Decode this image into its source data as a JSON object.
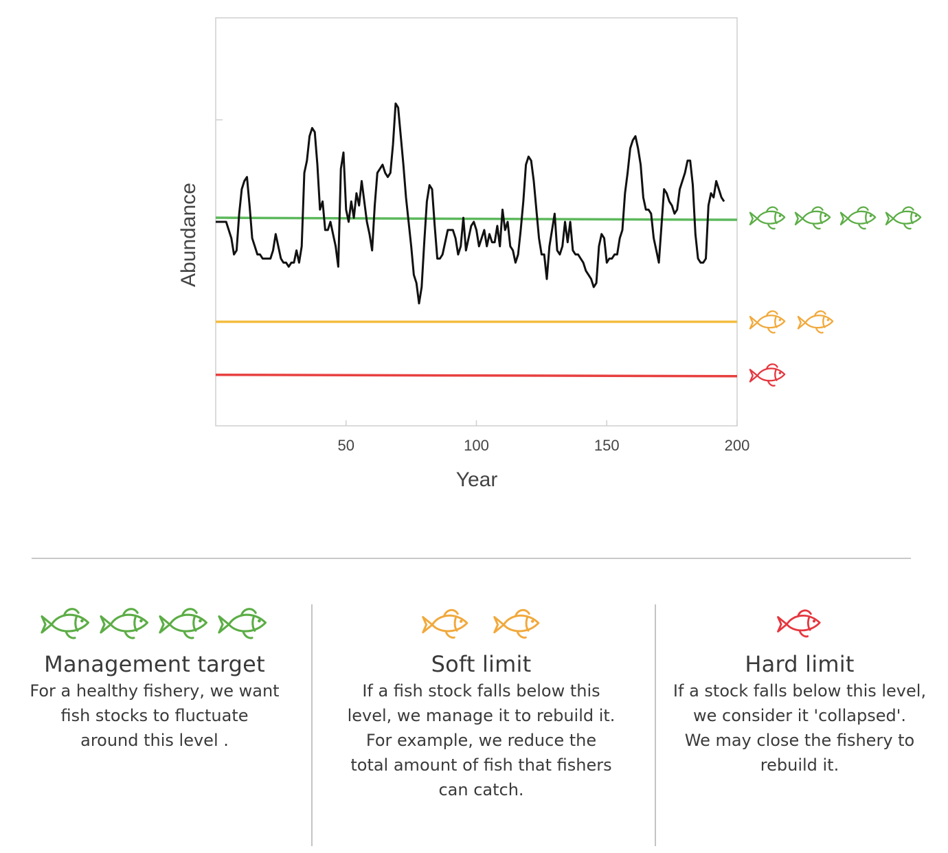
{
  "chart_data": {
    "type": "line",
    "xlabel": "Year",
    "ylabel": "Abundance",
    "xlim": [
      0,
      200
    ],
    "ylim": [
      0,
      100
    ],
    "xticks": [
      "50",
      "100",
      "150",
      "200"
    ],
    "xtick_values": [
      50,
      100,
      150,
      200
    ],
    "yticks": [
      75
    ],
    "grid": false,
    "series": [
      {
        "values": [
          [
            0,
            50
          ],
          [
            4,
            50
          ],
          [
            6,
            46
          ],
          [
            7,
            42
          ],
          [
            8,
            43
          ],
          [
            9,
            52
          ],
          [
            10,
            58
          ],
          [
            11,
            60
          ],
          [
            12,
            61
          ],
          [
            13,
            54
          ],
          [
            14,
            46
          ],
          [
            15,
            44
          ],
          [
            16,
            42
          ],
          [
            17,
            42
          ],
          [
            18,
            41
          ],
          [
            19,
            41
          ],
          [
            20,
            41
          ],
          [
            21,
            41
          ],
          [
            22,
            43
          ],
          [
            23,
            47
          ],
          [
            24,
            44
          ],
          [
            25,
            41
          ],
          [
            26,
            40
          ],
          [
            27,
            40
          ],
          [
            28,
            39
          ],
          [
            29,
            40
          ],
          [
            30,
            40
          ],
          [
            31,
            43
          ],
          [
            32,
            40
          ],
          [
            33,
            44
          ],
          [
            34,
            62
          ],
          [
            35,
            65
          ],
          [
            36,
            71
          ],
          [
            37,
            73
          ],
          [
            38,
            72
          ],
          [
            39,
            64
          ],
          [
            40,
            53
          ],
          [
            41,
            55
          ],
          [
            42,
            48
          ],
          [
            43,
            48
          ],
          [
            44,
            50
          ],
          [
            45,
            47
          ],
          [
            46,
            44
          ],
          [
            47,
            39
          ],
          [
            48,
            63
          ],
          [
            49,
            67
          ],
          [
            50,
            53
          ],
          [
            51,
            50
          ],
          [
            52,
            55
          ],
          [
            53,
            51
          ],
          [
            54,
            57
          ],
          [
            55,
            54
          ],
          [
            56,
            60
          ],
          [
            57,
            55
          ],
          [
            58,
            50
          ],
          [
            59,
            47
          ],
          [
            60,
            43
          ],
          [
            61,
            54
          ],
          [
            62,
            62
          ],
          [
            63,
            63
          ],
          [
            64,
            64
          ],
          [
            65,
            62
          ],
          [
            66,
            61
          ],
          [
            67,
            62
          ],
          [
            68,
            69
          ],
          [
            69,
            79
          ],
          [
            70,
            78
          ],
          [
            71,
            71
          ],
          [
            72,
            64
          ],
          [
            73,
            56
          ],
          [
            74,
            50
          ],
          [
            75,
            44
          ],
          [
            76,
            37
          ],
          [
            77,
            35
          ],
          [
            78,
            30
          ],
          [
            79,
            34
          ],
          [
            80,
            45
          ],
          [
            81,
            55
          ],
          [
            82,
            59
          ],
          [
            83,
            58
          ],
          [
            84,
            49
          ],
          [
            85,
            41
          ],
          [
            86,
            41
          ],
          [
            87,
            42
          ],
          [
            88,
            45
          ],
          [
            89,
            48
          ],
          [
            90,
            48
          ],
          [
            91,
            48
          ],
          [
            92,
            46
          ],
          [
            93,
            42
          ],
          [
            94,
            44
          ],
          [
            95,
            51
          ],
          [
            96,
            43
          ],
          [
            97,
            46
          ],
          [
            98,
            49
          ],
          [
            99,
            50
          ],
          [
            100,
            48
          ],
          [
            101,
            44
          ],
          [
            102,
            46
          ],
          [
            103,
            48
          ],
          [
            104,
            44
          ],
          [
            105,
            47
          ],
          [
            106,
            45
          ],
          [
            107,
            45
          ],
          [
            108,
            49
          ],
          [
            109,
            44
          ],
          [
            110,
            53
          ],
          [
            111,
            48
          ],
          [
            112,
            50
          ],
          [
            113,
            44
          ],
          [
            114,
            43
          ],
          [
            115,
            40
          ],
          [
            116,
            42
          ],
          [
            117,
            48
          ],
          [
            118,
            55
          ],
          [
            119,
            64
          ],
          [
            120,
            66
          ],
          [
            121,
            65
          ],
          [
            122,
            60
          ],
          [
            123,
            53
          ],
          [
            124,
            46
          ],
          [
            125,
            42
          ],
          [
            126,
            42
          ],
          [
            127,
            36
          ],
          [
            128,
            44
          ],
          [
            129,
            48
          ],
          [
            130,
            52
          ],
          [
            131,
            43
          ],
          [
            132,
            42
          ],
          [
            133,
            44
          ],
          [
            134,
            50
          ],
          [
            135,
            45
          ],
          [
            136,
            50
          ],
          [
            137,
            43
          ],
          [
            138,
            42
          ],
          [
            139,
            42
          ],
          [
            140,
            41
          ],
          [
            141,
            40
          ],
          [
            142,
            38
          ],
          [
            143,
            37
          ],
          [
            144,
            36
          ],
          [
            145,
            34
          ],
          [
            146,
            35
          ],
          [
            147,
            44
          ],
          [
            148,
            47
          ],
          [
            149,
            46
          ],
          [
            150,
            40
          ],
          [
            151,
            41
          ],
          [
            152,
            41
          ],
          [
            153,
            42
          ],
          [
            154,
            42
          ],
          [
            155,
            46
          ],
          [
            156,
            48
          ],
          [
            157,
            57
          ],
          [
            158,
            62
          ],
          [
            159,
            68
          ],
          [
            160,
            70
          ],
          [
            161,
            71
          ],
          [
            162,
            68
          ],
          [
            163,
            64
          ],
          [
            164,
            56
          ],
          [
            165,
            53
          ],
          [
            166,
            53
          ],
          [
            167,
            52
          ],
          [
            168,
            46
          ],
          [
            169,
            43
          ],
          [
            170,
            40
          ],
          [
            171,
            49
          ],
          [
            172,
            58
          ],
          [
            173,
            57
          ],
          [
            174,
            55
          ],
          [
            175,
            54
          ],
          [
            176,
            52
          ],
          [
            177,
            53
          ],
          [
            178,
            58
          ],
          [
            179,
            60
          ],
          [
            180,
            62
          ],
          [
            181,
            65
          ],
          [
            182,
            65
          ],
          [
            183,
            59
          ],
          [
            184,
            47
          ],
          [
            185,
            41
          ],
          [
            186,
            40
          ],
          [
            187,
            40
          ],
          [
            188,
            41
          ],
          [
            189,
            54
          ],
          [
            190,
            57
          ],
          [
            191,
            56
          ],
          [
            192,
            60
          ],
          [
            193,
            58
          ],
          [
            194,
            56
          ],
          [
            195,
            55
          ]
        ],
        "color": "#111111"
      }
    ],
    "reference_lines": [
      {
        "label": "Management target",
        "y": 51,
        "color": "#5cb85c",
        "fish_count": 4,
        "fish_color": "#5cad46"
      },
      {
        "label": "Soft limit",
        "y": 25.5,
        "color": "#f5bd3f",
        "fish_count": 2,
        "fish_color": "#f1a93c"
      },
      {
        "label": "Hard limit",
        "y": 12.5,
        "color": "#e84040",
        "fish_count": 1,
        "fish_color": "#e5373f"
      }
    ]
  },
  "legend": {
    "management": {
      "title": "Management target",
      "text": [
        "For a healthy fishery, we want",
        "fish stocks to fluctuate",
        "around this level ."
      ],
      "fish_count": 4,
      "color": "#5cad46",
      "icon": "fish-icon"
    },
    "soft": {
      "title": "Soft limit",
      "text": [
        "If a fish stock falls below this",
        "level, we manage it to rebuild it.",
        "For example, we reduce the",
        "total amount of fish that fishers",
        "can catch."
      ],
      "fish_count": 2,
      "color": "#f1a93c",
      "icon": "fish-icon"
    },
    "hard": {
      "title": "Hard limit",
      "text": [
        "If a stock falls below this level,",
        "we consider it 'collapsed'.",
        "We may close the fishery to",
        "rebuild it."
      ],
      "fish_count": 1,
      "color": "#e5373f",
      "icon": "fish-icon"
    }
  }
}
